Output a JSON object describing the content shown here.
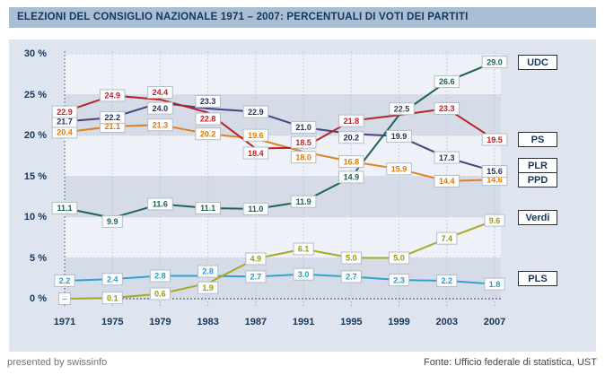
{
  "page": {
    "title": "ELEZIONI DEL CONSIGLIO NAZIONALE 1971 – 2007: PERCENTUALI DI VOTI DEI PARTITI"
  },
  "footer": {
    "left": "presented by swissinfo",
    "right": "Fonte: Ufficio federale di statistica, UST"
  },
  "colors": {
    "title_bg": "#a9bed3",
    "navy": "#14365c",
    "panel_bg": "#dfe5f0",
    "band_light": "#eef1f8",
    "band_dark": "#d5dce8",
    "grid_light": "#bac4d2",
    "grid_dark": "#3c4c66",
    "label_box_bg": "#fcfdfe",
    "label_box_border": "#b4bdc9"
  },
  "chart_data": {
    "type": "line",
    "title": "ELEZIONI DEL CONSIGLIO NAZIONALE 1971 – 2007: PERCENTUALI DI VOTI DEI PARTITI",
    "x": [
      1971,
      1975,
      1979,
      1983,
      1987,
      1991,
      1995,
      1999,
      2003,
      2007
    ],
    "ylim": [
      0,
      30
    ],
    "yticks": [
      0,
      5,
      10,
      15,
      20,
      25,
      30
    ],
    "ytick_suffix": " %",
    "grid": true,
    "legend_position": "right",
    "series": [
      {
        "name": "PLS",
        "color": "#35a1cb",
        "label_color": "#2d9cc4",
        "values": [
          2.2,
          2.4,
          2.8,
          2.8,
          2.7,
          3.0,
          2.7,
          2.3,
          2.2,
          1.8
        ]
      },
      {
        "name": "Verdi",
        "color": "#a7aa1f",
        "label_color": "#9a9c14",
        "missing_label": "–",
        "values": [
          null,
          0.1,
          0.6,
          1.9,
          4.9,
          6.1,
          5.0,
          5.0,
          7.4,
          9.6
        ]
      },
      {
        "name": "PPD",
        "color": "#e0811f",
        "label_color": "#e07a00",
        "values": [
          20.4,
          21.1,
          21.3,
          20.2,
          19.6,
          18.0,
          16.8,
          15.9,
          14.4,
          14.6
        ]
      },
      {
        "name": "PLR",
        "color": "#44447f",
        "label_color": "#2f2f55",
        "values": [
          21.7,
          22.2,
          24.0,
          23.3,
          22.9,
          21.0,
          20.2,
          19.9,
          17.3,
          15.6
        ]
      },
      {
        "name": "PS",
        "color": "#b8232a",
        "label_color": "#c41e25",
        "values": [
          22.9,
          24.9,
          24.4,
          22.8,
          18.4,
          18.5,
          21.8,
          22.5,
          23.3,
          19.5
        ]
      },
      {
        "name": "UDC",
        "color": "#206253",
        "label_color": "#1d6152",
        "values": [
          11.1,
          9.9,
          11.6,
          11.1,
          11.0,
          11.9,
          14.9,
          22.5,
          26.6,
          29.0
        ]
      }
    ]
  }
}
